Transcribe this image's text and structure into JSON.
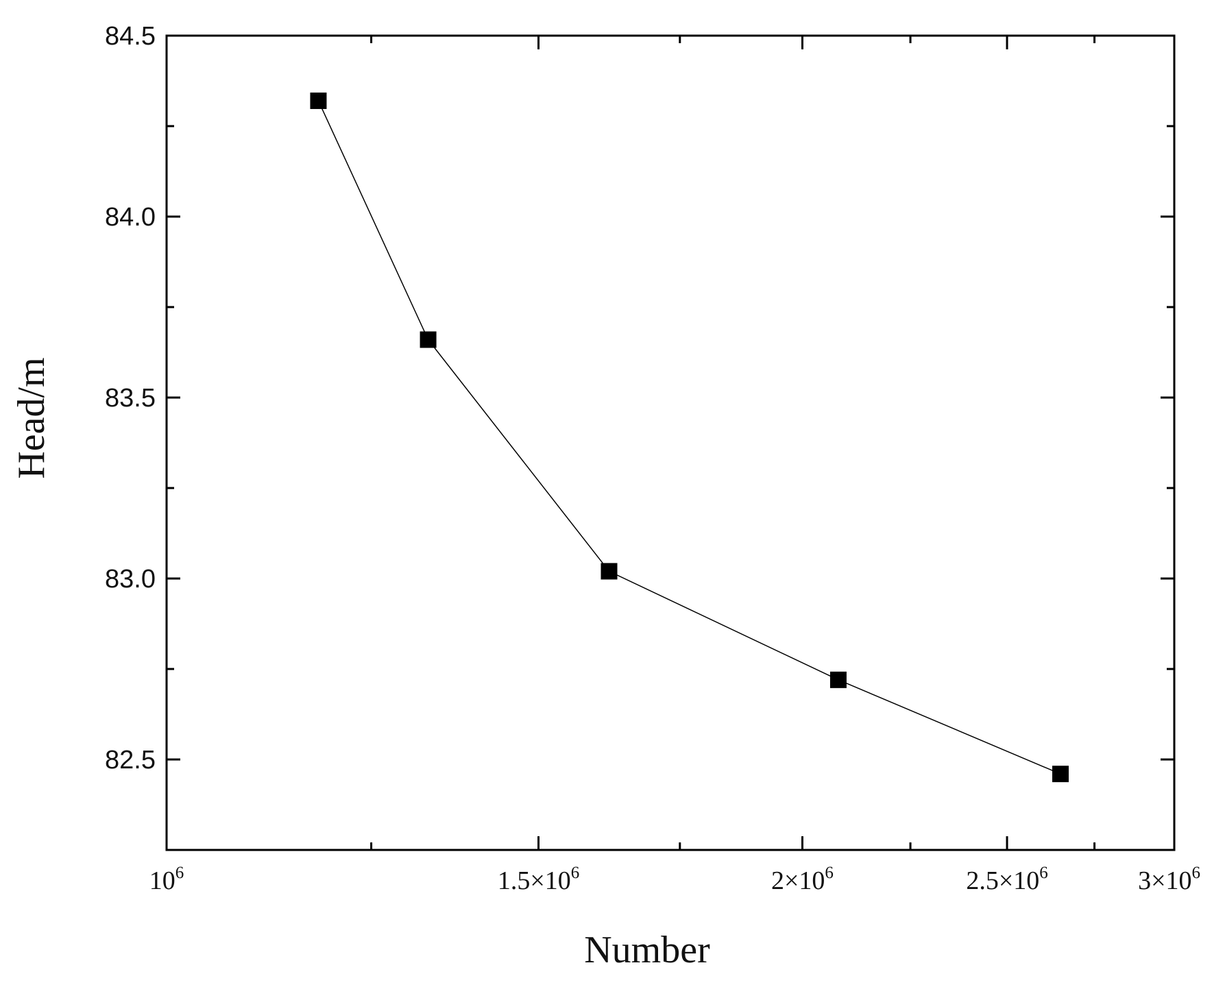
{
  "chart_data": {
    "type": "line",
    "title": "",
    "xlabel": "Number",
    "ylabel": "Head/m",
    "xscale": "log",
    "xlim": [
      1000000,
      3000000
    ],
    "ylim": [
      82.25,
      84.5
    ],
    "xticks": [
      {
        "value": 1000000,
        "mantissa": "",
        "label": "10",
        "exponent": "6"
      },
      {
        "value": 1500000,
        "mantissa": "1.5×",
        "label": "10",
        "exponent": "6"
      },
      {
        "value": 2000000,
        "mantissa": "2×",
        "label": "10",
        "exponent": "6"
      },
      {
        "value": 2500000,
        "mantissa": "2.5×",
        "label": "10",
        "exponent": "6"
      },
      {
        "value": 3000000,
        "mantissa": "3×",
        "label": "10",
        "exponent": "6"
      }
    ],
    "xminor_ticks": [
      1250000,
      1750000,
      2250000,
      2750000
    ],
    "yticks": [
      "82.5",
      "83.0",
      "83.5",
      "84.0",
      "84.5"
    ],
    "yminor_ticks": [
      82.75,
      83.25,
      83.75,
      84.25
    ],
    "grid": false,
    "legend": "none",
    "marker": "square",
    "color": "#000000",
    "series": [
      {
        "x": [
          1180000,
          1330000,
          1620000,
          2080000,
          2650000
        ],
        "y": [
          84.32,
          83.66,
          83.02,
          82.72,
          82.46
        ]
      }
    ]
  }
}
